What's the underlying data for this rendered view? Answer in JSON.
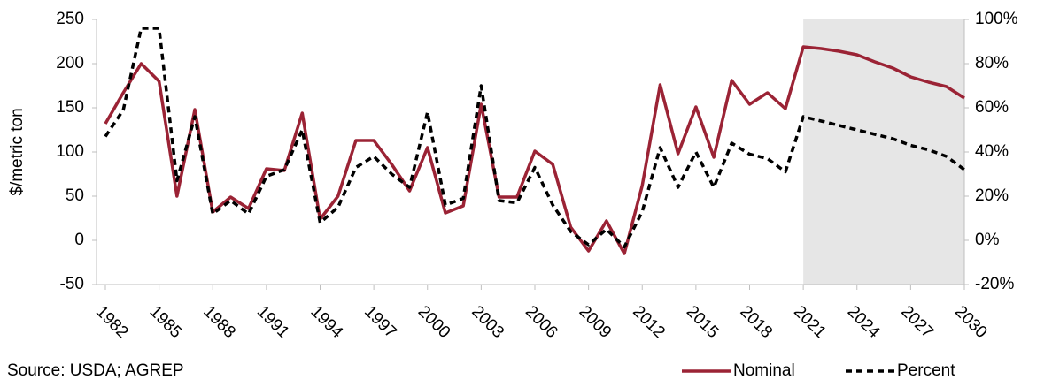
{
  "chart_data": {
    "type": "line",
    "y_label": "$/metric ton",
    "source": "Source: USDA; AGREP",
    "x": [
      1982,
      1983,
      1984,
      1985,
      1986,
      1987,
      1988,
      1989,
      1990,
      1991,
      1992,
      1993,
      1994,
      1995,
      1996,
      1997,
      1998,
      1999,
      2000,
      2001,
      2002,
      2003,
      2004,
      2005,
      2006,
      2007,
      2008,
      2009,
      2010,
      2011,
      2012,
      2013,
      2014,
      2015,
      2016,
      2017,
      2018,
      2019,
      2020,
      2021,
      2022,
      2023,
      2024,
      2025,
      2026,
      2027,
      2028,
      2029,
      2030
    ],
    "xlim": [
      1982,
      2030
    ],
    "xticks": [
      1982,
      1985,
      1988,
      1991,
      1994,
      1997,
      2000,
      2003,
      2006,
      2009,
      2012,
      2015,
      2018,
      2021,
      2024,
      2027,
      2030
    ],
    "ylim": [
      -50,
      250
    ],
    "yticks": [
      -50,
      0,
      50,
      100,
      150,
      200,
      250
    ],
    "y2lim": [
      -20,
      100
    ],
    "y2ticks": [
      {
        "value": -20,
        "label": "-20%"
      },
      {
        "value": 0,
        "label": "0%"
      },
      {
        "value": 20,
        "label": "20%"
      },
      {
        "value": 40,
        "label": "40%"
      },
      {
        "value": 60,
        "label": "60%"
      },
      {
        "value": 80,
        "label": "80%"
      },
      {
        "value": 100,
        "label": "100%"
      }
    ],
    "shaded_xrange": [
      2021,
      2030
    ],
    "shade_color": "#e6e6e6",
    "grid": false,
    "legend": "bottom-right",
    "series": [
      {
        "name": "Nominal",
        "color": "#9b2335",
        "dash": false,
        "values": [
          132,
          167,
          200,
          180,
          50,
          148,
          32,
          49,
          36,
          81,
          79,
          144,
          24,
          50,
          113,
          113,
          86,
          56,
          105,
          31,
          39,
          154,
          49,
          49,
          101,
          86,
          15,
          -12,
          22,
          -15,
          62,
          176,
          98,
          151,
          94,
          181,
          154,
          167,
          149,
          219,
          217,
          214,
          210,
          202,
          195,
          185,
          179,
          174,
          161
        ]
      },
      {
        "name": "Percent",
        "color": "#000000",
        "dash": true,
        "axis": "y2",
        "values": [
          47,
          59,
          96,
          96,
          27,
          56,
          12,
          18,
          12,
          29,
          32,
          50,
          8,
          15,
          33,
          38,
          30,
          24,
          58,
          16,
          19,
          70,
          18,
          17,
          33,
          16,
          4,
          -2,
          5,
          -3,
          13,
          42,
          24,
          40,
          24,
          44,
          39,
          37,
          31,
          56,
          54,
          52,
          50,
          48,
          46,
          43,
          41,
          38,
          32
        ]
      }
    ]
  }
}
